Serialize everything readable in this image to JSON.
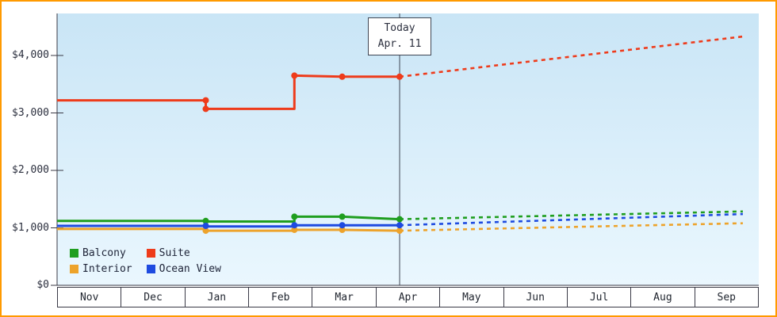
{
  "frame": {
    "border_color": "#ff9a00",
    "plot_bg_top": "#c9e5f6",
    "plot_bg_bottom": "#eaf7fe",
    "axis_color": "#3a3a46"
  },
  "chart_data": {
    "type": "line",
    "title": "",
    "description": "Cruise cabin price history (solid) and forecast after today (dashed)",
    "x_axis": {
      "unit": "month_index",
      "note": "Nov=0 ... Sep=10, fractional values = day within month; plot right edge = 11",
      "labels": [
        "Nov",
        "Dec",
        "Jan",
        "Feb",
        "Mar",
        "Apr",
        "May",
        "Jun",
        "Jul",
        "Aug",
        "Sep"
      ]
    },
    "y_axis": {
      "range": [
        0,
        4730
      ],
      "ticks": [
        {
          "value": 0,
          "label": "$0"
        },
        {
          "value": 1000,
          "label": "$1,000"
        },
        {
          "value": 2000,
          "label": "$2,000"
        },
        {
          "value": 3000,
          "label": "$3,000"
        },
        {
          "value": 4000,
          "label": "$4,000"
        }
      ]
    },
    "today": {
      "label": "Today",
      "date": "Apr. 11",
      "x": 5.37
    },
    "legend_position": "bottom-left",
    "series": [
      {
        "name": "Balcony",
        "color": "#1f9e1f",
        "solid": [
          [
            0,
            1120
          ],
          [
            2.33,
            1120
          ],
          [
            2.33,
            1110
          ],
          [
            3.72,
            1110
          ],
          [
            3.72,
            1195
          ],
          [
            4.47,
            1195
          ],
          [
            5.37,
            1150
          ]
        ],
        "dashed": [
          [
            5.37,
            1150
          ],
          [
            10.75,
            1285
          ]
        ],
        "markers": [
          [
            2.33,
            1120
          ],
          [
            3.72,
            1195
          ],
          [
            4.47,
            1195
          ],
          [
            5.37,
            1150
          ]
        ]
      },
      {
        "name": "Suite",
        "color": "#ee3b1b",
        "solid": [
          [
            0,
            3220
          ],
          [
            2.33,
            3220
          ],
          [
            2.33,
            3070
          ],
          [
            3.72,
            3070
          ],
          [
            3.72,
            3650
          ],
          [
            4.47,
            3630
          ],
          [
            5.37,
            3630
          ]
        ],
        "dashed": [
          [
            5.37,
            3630
          ],
          [
            10.75,
            4330
          ]
        ],
        "markers": [
          [
            2.33,
            3220
          ],
          [
            2.33,
            3070
          ],
          [
            3.72,
            3650
          ],
          [
            4.47,
            3630
          ],
          [
            5.37,
            3630
          ]
        ]
      },
      {
        "name": "Interior",
        "color": "#eda32b",
        "solid": [
          [
            0,
            980
          ],
          [
            2.33,
            980
          ],
          [
            2.33,
            950
          ],
          [
            3.72,
            950
          ],
          [
            3.72,
            965
          ],
          [
            4.47,
            965
          ],
          [
            5.37,
            950
          ]
        ],
        "dashed": [
          [
            5.37,
            950
          ],
          [
            10.75,
            1080
          ]
        ],
        "markers": [
          [
            2.33,
            950
          ],
          [
            3.72,
            965
          ],
          [
            4.47,
            965
          ],
          [
            5.37,
            950
          ]
        ]
      },
      {
        "name": "Ocean View",
        "color": "#1e4be0",
        "solid": [
          [
            0,
            1035
          ],
          [
            2.33,
            1035
          ],
          [
            2.33,
            1025
          ],
          [
            3.72,
            1025
          ],
          [
            3.72,
            1045
          ],
          [
            4.47,
            1045
          ],
          [
            5.37,
            1045
          ]
        ],
        "dashed": [
          [
            5.37,
            1045
          ],
          [
            10.75,
            1240
          ]
        ],
        "markers": [
          [
            2.33,
            1035
          ],
          [
            3.72,
            1045
          ],
          [
            4.47,
            1045
          ],
          [
            5.37,
            1045
          ]
        ]
      }
    ]
  }
}
